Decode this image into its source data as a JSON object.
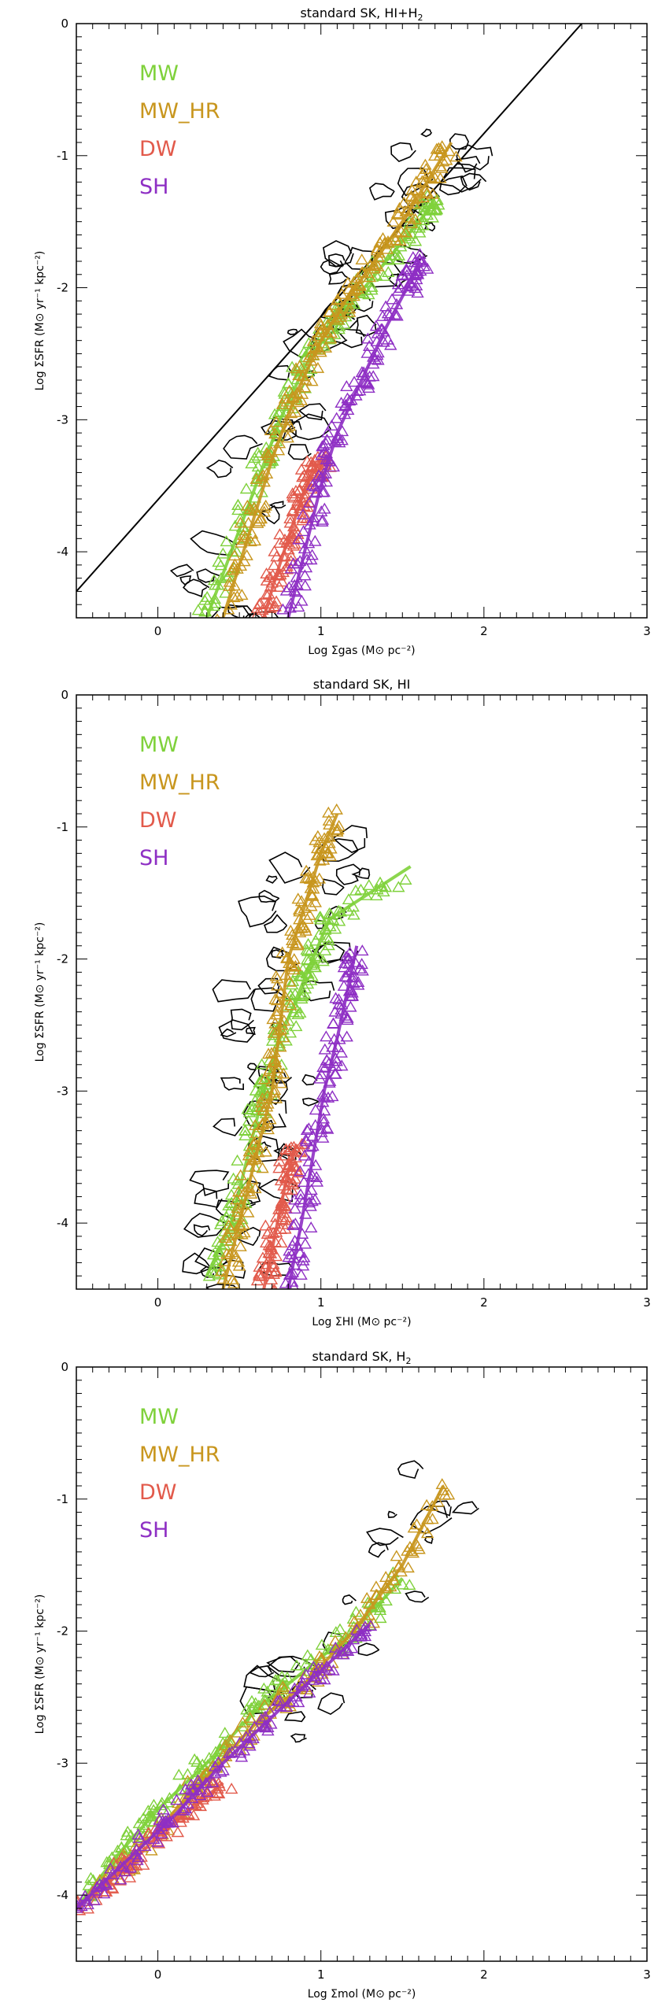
{
  "chart_data": [
    {
      "type": "scatter",
      "title": "standard SK, HI+H",
      "title_sub": "2",
      "xlabel": "Log Σgas (M⊙ pc⁻²)",
      "ylabel": "Log ΣSFR (M⊙ yr⁻¹ kpc⁻²)",
      "xlim": [
        -0.5,
        3
      ],
      "ylim": [
        -4.5,
        0
      ],
      "xticks": [
        "0",
        "1",
        "2",
        "3"
      ],
      "yticks": [
        "0",
        "-1",
        "-2",
        "-3",
        "-4"
      ],
      "legend_placement": "top-left",
      "reference_line": {
        "x": [
          -0.5,
          2.6
        ],
        "y": [
          -4.3,
          0.0
        ]
      },
      "series": [
        {
          "name": "MW",
          "color": "#7fd13b",
          "x": [
            0.3,
            0.45,
            0.6,
            0.75,
            0.9,
            1.05,
            1.2,
            1.4,
            1.6,
            1.7
          ],
          "y": [
            -4.5,
            -4.0,
            -3.5,
            -3.0,
            -2.6,
            -2.3,
            -2.1,
            -1.8,
            -1.5,
            -1.35
          ]
        },
        {
          "name": "MW_HR",
          "color": "#c8961e",
          "x": [
            0.4,
            0.55,
            0.7,
            0.85,
            1.0,
            1.15,
            1.3,
            1.5,
            1.65,
            1.8
          ],
          "y": [
            -4.5,
            -3.9,
            -3.3,
            -2.8,
            -2.4,
            -2.1,
            -1.85,
            -1.5,
            -1.2,
            -0.9
          ]
        },
        {
          "name": "DW",
          "color": "#e25a4b",
          "x": [
            0.65,
            0.72,
            0.8,
            0.88,
            0.95,
            1.0
          ],
          "y": [
            -4.5,
            -4.2,
            -3.9,
            -3.6,
            -3.4,
            -3.3
          ]
        },
        {
          "name": "SH",
          "color": "#8e2fc4",
          "x": [
            0.8,
            0.9,
            1.0,
            1.1,
            1.25,
            1.4,
            1.55,
            1.6
          ],
          "y": [
            -4.5,
            -4.0,
            -3.5,
            -3.1,
            -2.7,
            -2.3,
            -1.95,
            -1.8
          ]
        }
      ]
    },
    {
      "type": "scatter",
      "title": "standard SK, HI",
      "title_sub": "",
      "xlabel": "Log ΣHI (M⊙ pc⁻²)",
      "ylabel": "Log ΣSFR (M⊙ yr⁻¹ kpc⁻²)",
      "xlim": [
        -0.5,
        3
      ],
      "ylim": [
        -4.5,
        0
      ],
      "xticks": [
        "0",
        "1",
        "2",
        "3"
      ],
      "yticks": [
        "0",
        "-1",
        "-2",
        "-3",
        "-4"
      ],
      "legend_placement": "top-left",
      "reference_line": null,
      "series": [
        {
          "name": "MW",
          "color": "#7fd13b",
          "x": [
            0.3,
            0.45,
            0.55,
            0.65,
            0.75,
            0.85,
            0.95,
            1.05,
            1.55
          ],
          "y": [
            -4.4,
            -4.0,
            -3.5,
            -3.0,
            -2.6,
            -2.3,
            -2.0,
            -1.7,
            -1.3
          ]
        },
        {
          "name": "MW_HR",
          "color": "#c8961e",
          "x": [
            0.4,
            0.5,
            0.6,
            0.7,
            0.75,
            0.8,
            0.9,
            1.0,
            1.1
          ],
          "y": [
            -4.5,
            -4.0,
            -3.5,
            -3.0,
            -2.5,
            -2.0,
            -1.6,
            -1.2,
            -0.9
          ]
        },
        {
          "name": "DW",
          "color": "#e25a4b",
          "x": [
            0.65,
            0.7,
            0.75,
            0.8,
            0.85
          ],
          "y": [
            -4.5,
            -4.2,
            -3.9,
            -3.6,
            -3.4
          ]
        },
        {
          "name": "SH",
          "color": "#8e2fc4",
          "x": [
            0.8,
            0.88,
            0.95,
            1.02,
            1.1,
            1.17,
            1.22
          ],
          "y": [
            -4.5,
            -4.0,
            -3.5,
            -3.0,
            -2.6,
            -2.2,
            -1.9
          ]
        }
      ]
    },
    {
      "type": "scatter",
      "title": "standard SK, H",
      "title_sub": "2",
      "xlabel": "Log Σmol (M⊙ pc⁻²)",
      "ylabel": "Log ΣSFR (M⊙ yr⁻¹ kpc⁻²)",
      "xlim": [
        -0.5,
        3
      ],
      "ylim": [
        -4.5,
        0
      ],
      "xticks": [
        "0",
        "1",
        "2",
        "3"
      ],
      "yticks": [
        "0",
        "-1",
        "-2",
        "-3",
        "-4"
      ],
      "legend_placement": "top-left",
      "reference_line": null,
      "series": [
        {
          "name": "MW",
          "color": "#7fd13b",
          "x": [
            -0.5,
            -0.25,
            0.0,
            0.3,
            0.6,
            0.9,
            1.2,
            1.5
          ],
          "y": [
            -4.1,
            -3.7,
            -3.35,
            -3.0,
            -2.6,
            -2.3,
            -2.0,
            -1.6
          ]
        },
        {
          "name": "MW_HR",
          "color": "#c8961e",
          "x": [
            -0.3,
            0.0,
            0.3,
            0.6,
            0.9,
            1.2,
            1.5,
            1.75
          ],
          "y": [
            -3.9,
            -3.5,
            -3.1,
            -2.7,
            -2.4,
            -2.0,
            -1.5,
            -0.9
          ]
        },
        {
          "name": "DW",
          "color": "#e25a4b",
          "x": [
            -0.5,
            -0.2,
            0.0,
            0.2,
            0.4
          ],
          "y": [
            -4.1,
            -3.8,
            -3.55,
            -3.35,
            -3.15
          ]
        },
        {
          "name": "SH",
          "color": "#8e2fc4",
          "x": [
            -0.5,
            -0.2,
            0.1,
            0.4,
            0.7,
            1.0,
            1.3
          ],
          "y": [
            -4.1,
            -3.75,
            -3.4,
            -3.0,
            -2.65,
            -2.3,
            -1.95
          ]
        }
      ]
    }
  ]
}
